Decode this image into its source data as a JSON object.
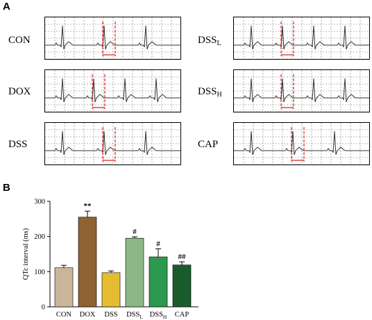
{
  "panel_a_label": "A",
  "panel_b_label": "B",
  "ecg_panels": [
    {
      "id": "con",
      "label": "CON",
      "sub": "",
      "beats": 3,
      "seed": 1
    },
    {
      "id": "dox",
      "label": "DOX",
      "sub": "",
      "beats": 4,
      "seed": 2
    },
    {
      "id": "dss",
      "label": "DSS",
      "sub": "",
      "beats": 3,
      "seed": 3
    },
    {
      "id": "dssl",
      "label": "DSS",
      "sub": "L",
      "beats": 4,
      "seed": 4
    },
    {
      "id": "dssh",
      "label": "DSS",
      "sub": "H",
      "beats": 4,
      "seed": 5
    },
    {
      "id": "cap",
      "label": "CAP",
      "sub": "",
      "beats": 3,
      "seed": 6
    }
  ],
  "colors": {
    "trace": "#333333",
    "grid": "#777777",
    "marker": "#e02020"
  },
  "chart_data": {
    "type": "bar",
    "categories": [
      {
        "name": "CON",
        "sub": ""
      },
      {
        "name": "DOX",
        "sub": ""
      },
      {
        "name": "DSS",
        "sub": ""
      },
      {
        "name": "DSS",
        "sub": "L"
      },
      {
        "name": "DSS",
        "sub": "H"
      },
      {
        "name": "CAP",
        "sub": ""
      }
    ],
    "values": [
      111,
      255,
      97,
      195,
      142,
      119
    ],
    "errors": [
      7,
      17,
      5,
      4,
      23,
      9
    ],
    "significance": [
      "",
      "**",
      "",
      "#",
      "#",
      "##"
    ],
    "colors": [
      "#c9b59a",
      "#8f6232",
      "#e4bd33",
      "#8cb886",
      "#2c9950",
      "#1b5c2e"
    ],
    "ylabel": "QTc interval (ms)",
    "xlabel": "",
    "ylim": [
      0,
      300
    ],
    "yticks": [
      0,
      100,
      200,
      300
    ],
    "grid": false,
    "legend": "none"
  }
}
